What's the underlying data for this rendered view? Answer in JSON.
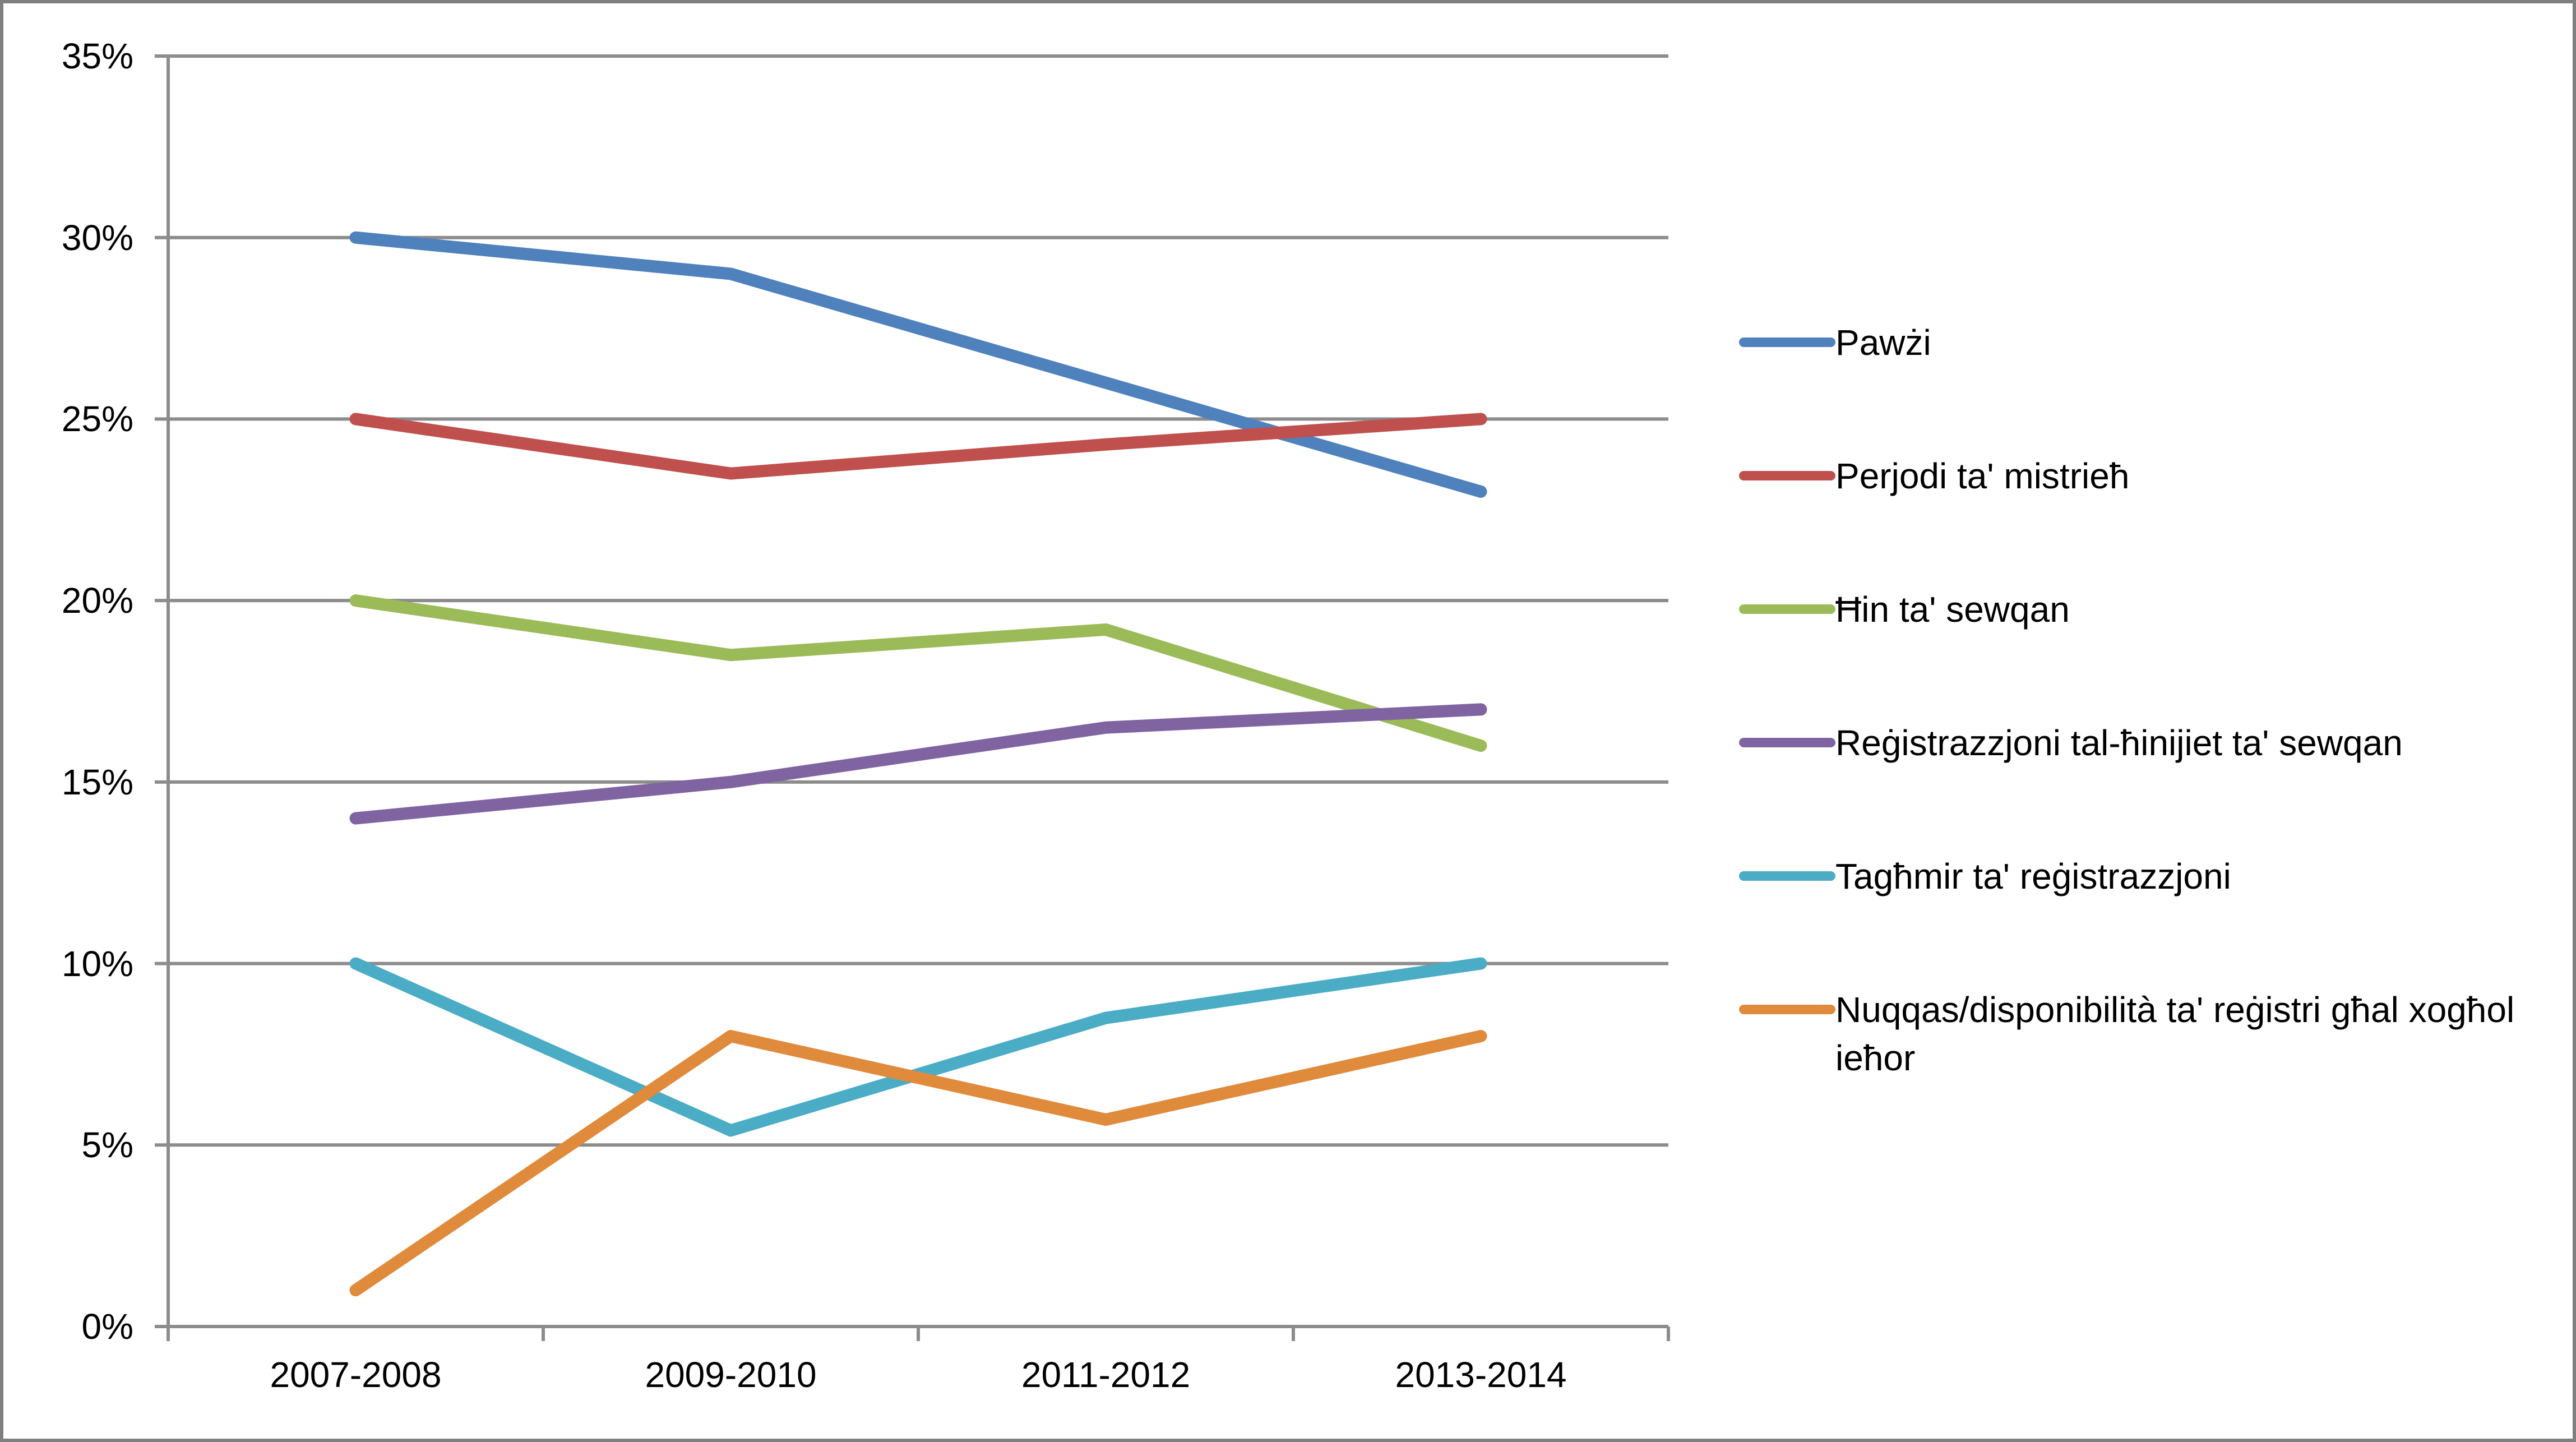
{
  "chart_data": {
    "type": "line",
    "title": "",
    "xlabel": "",
    "ylabel": "",
    "categories": [
      "2007-2008",
      "2009-2010",
      "2011-2012",
      "2013-2014"
    ],
    "series": [
      {
        "name": "Pawżi",
        "color": "#4F81BD",
        "values": [
          30,
          29,
          26,
          23
        ]
      },
      {
        "name": "Perjodi ta' mistrieħ",
        "color": "#C0504D",
        "values": [
          25,
          23.5,
          24.3,
          25
        ]
      },
      {
        "name": "Ħin ta' sewqan",
        "color": "#9BBB59",
        "values": [
          20,
          18.5,
          19.2,
          16
        ]
      },
      {
        "name": "Reġistrazzjoni tal-ħinijiet ta' sewqan",
        "color": "#8064A2",
        "values": [
          14,
          15,
          16.5,
          17
        ]
      },
      {
        "name": "Tagħmir ta' reġistrazzjoni",
        "color": "#4BACC6",
        "values": [
          10,
          5.4,
          8.5,
          10
        ]
      },
      {
        "name": "Nuqqas/disponibilità ta' reġistri għal xogħol ieħor",
        "color": "#E08A3C",
        "values": [
          1,
          8,
          5.7,
          8
        ]
      }
    ],
    "ylim": [
      0,
      35
    ],
    "yticks": [
      {
        "value": 0,
        "label": "0%"
      },
      {
        "value": 5,
        "label": "5%"
      },
      {
        "value": 10,
        "label": "10%"
      },
      {
        "value": 15,
        "label": "15%"
      },
      {
        "value": 20,
        "label": "20%"
      },
      {
        "value": 25,
        "label": "25%"
      },
      {
        "value": 30,
        "label": "30%"
      },
      {
        "value": 35,
        "label": "35%"
      }
    ],
    "grid": true,
    "legend_position": "right",
    "gridline_color": "#8C8C8C",
    "axis_color": "#8C8C8C",
    "text_color": "#000000",
    "background_color": "#FFFFFF",
    "border_color": "#7F7F7F"
  }
}
